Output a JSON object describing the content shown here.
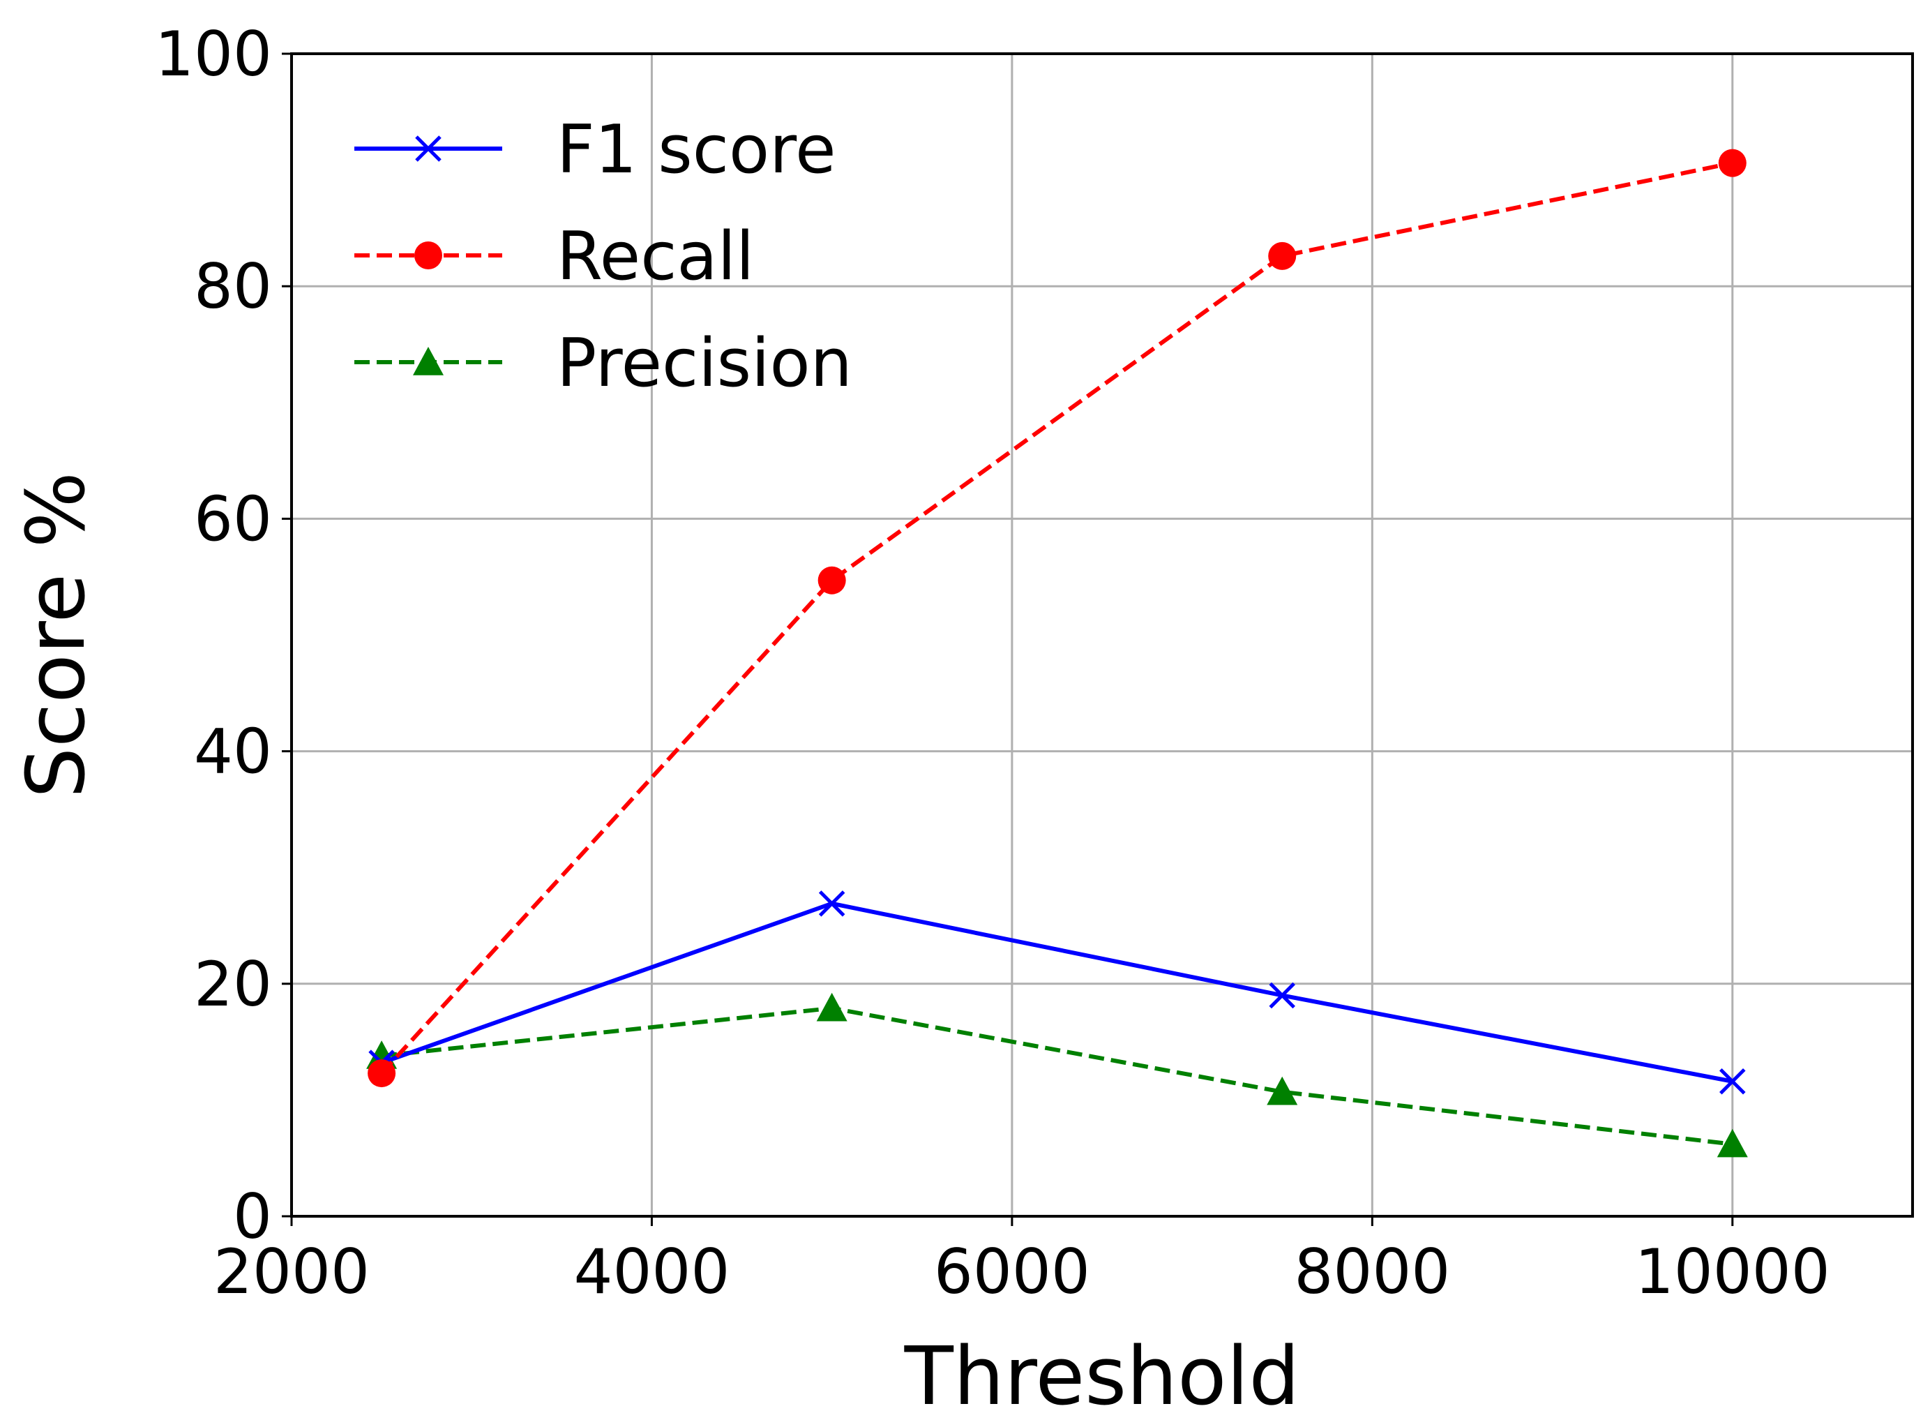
{
  "chart_data": {
    "type": "line",
    "title": "",
    "xlabel": "Threshold",
    "ylabel": "Score %",
    "xlim": [
      2000,
      11000
    ],
    "ylim": [
      0,
      100
    ],
    "xticks": [
      2000,
      4000,
      6000,
      8000,
      10000
    ],
    "yticks": [
      0,
      20,
      40,
      60,
      80,
      100
    ],
    "x_tick_labels": [
      "2000",
      "4000",
      "6000",
      "8000",
      "10000"
    ],
    "y_tick_labels": [
      "0",
      "20",
      "40",
      "60",
      "80",
      "100"
    ],
    "grid": true,
    "legend_position": "top-left",
    "x": [
      2500,
      5000,
      7500,
      10000
    ],
    "series": [
      {
        "name": "F1 score",
        "values": [
          13.2,
          26.9,
          19.0,
          11.6
        ],
        "color": "#0000ff",
        "linestyle": "solid",
        "marker": "x"
      },
      {
        "name": "Recall",
        "values": [
          12.3,
          54.7,
          82.6,
          90.6
        ],
        "color": "#ff0000",
        "linestyle": "dashed",
        "marker": "o"
      },
      {
        "name": "Precision",
        "values": [
          13.8,
          17.9,
          10.7,
          6.2
        ],
        "color": "#008000",
        "linestyle": "dashed",
        "marker": "^"
      }
    ]
  }
}
